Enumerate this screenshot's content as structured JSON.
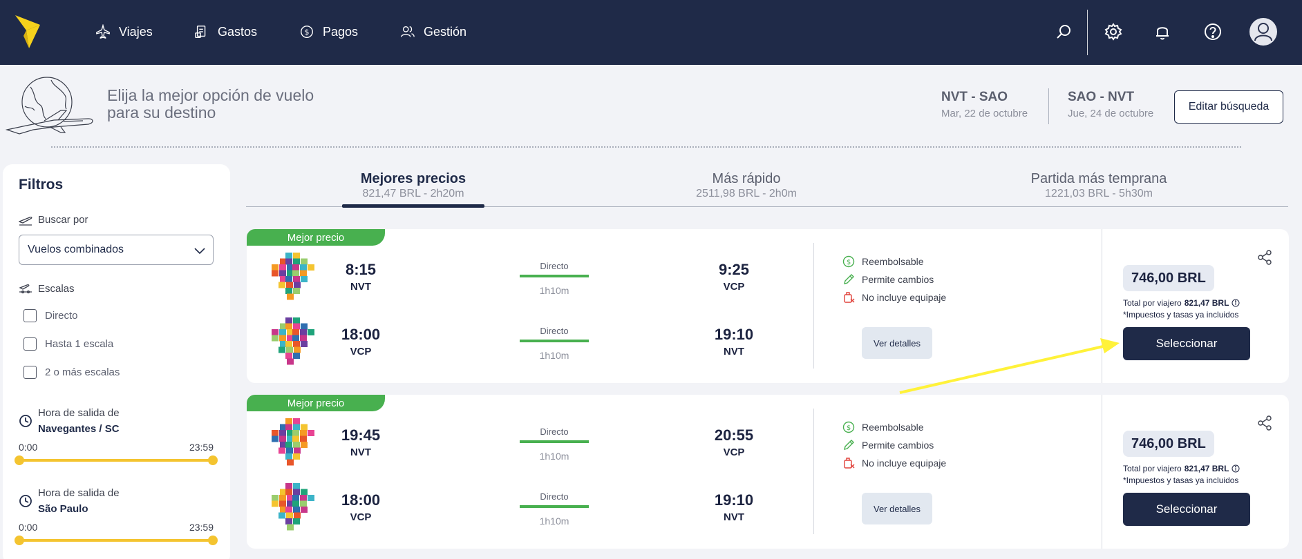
{
  "nav": {
    "items": [
      {
        "label": "Viajes",
        "icon": "plane-icon"
      },
      {
        "label": "Gastos",
        "icon": "receipt-icon"
      },
      {
        "label": "Pagos",
        "icon": "dollar-circle-icon"
      },
      {
        "label": "Gestión",
        "icon": "users-icon"
      }
    ]
  },
  "header": {
    "headline": "Elija la mejor opción de vuelo para su destino",
    "outbound": {
      "route": "NVT - SAO",
      "date": "Mar, 22 de octubre"
    },
    "inbound": {
      "route": "SAO - NVT",
      "date": "Jue, 24 de octubre"
    },
    "edit_label": "Editar búsqueda"
  },
  "filters": {
    "title": "Filtros",
    "search_by_label": "Buscar por",
    "search_by_value": "Vuelos combinados",
    "stops_label": "Escalas",
    "stops_options": [
      "Directo",
      "Hasta 1 escala",
      "2 o más escalas"
    ],
    "departure_1": {
      "label": "Hora de salida de",
      "place": "Navegantes / SC",
      "from": "0:00",
      "to": "23:59"
    },
    "departure_2": {
      "label": "Hora de salida de",
      "place": "São Paulo",
      "from": "0:00",
      "to": "23:59"
    }
  },
  "tabs": [
    {
      "label": "Mejores precios",
      "sub": "821,47 BRL - 2h20m",
      "active": true
    },
    {
      "label": "Más rápido",
      "sub": "2511,98 BRL - 2h0m"
    },
    {
      "label": "Partida más temprana",
      "sub": "1221,03 BRL - 5h30m"
    }
  ],
  "cards": [
    {
      "badge": "Mejor precio",
      "legs": [
        {
          "dep_time": "8:15",
          "dep_code": "NVT",
          "type": "Directo",
          "duration": "1h10m",
          "arr_time": "9:25",
          "arr_code": "VCP"
        },
        {
          "dep_time": "18:00",
          "dep_code": "VCP",
          "type": "Directo",
          "duration": "1h10m",
          "arr_time": "19:10",
          "arr_code": "NVT"
        }
      ],
      "features": [
        "Reembolsable",
        "Permite cambios",
        "No incluye equipaje"
      ],
      "details_label": "Ver detalles",
      "price": "746,00 BRL",
      "total_label": "Total por viajero",
      "total_value": "821,47 BRL",
      "taxes": "*Impuestos y tasas ya incluidos",
      "select_label": "Seleccionar"
    },
    {
      "badge": "Mejor precio",
      "legs": [
        {
          "dep_time": "19:45",
          "dep_code": "NVT",
          "type": "Directo",
          "duration": "1h10m",
          "arr_time": "20:55",
          "arr_code": "VCP"
        },
        {
          "dep_time": "18:00",
          "dep_code": "VCP",
          "type": "Directo",
          "duration": "1h10m",
          "arr_time": "19:10",
          "arr_code": "NVT"
        }
      ],
      "features": [
        "Reembolsable",
        "Permite cambios",
        "No incluye equipaje"
      ],
      "details_label": "Ver detalles",
      "price": "746,00 BRL",
      "total_label": "Total por viajero",
      "total_value": "821,47 BRL",
      "taxes": "*Impuestos y tasas ya incluidos",
      "select_label": "Seleccionar"
    }
  ],
  "colors": {
    "navy": "#1f2a48",
    "green": "#48b04f",
    "yellow": "#f4c430",
    "annotation_arrow": "#fff23a"
  }
}
